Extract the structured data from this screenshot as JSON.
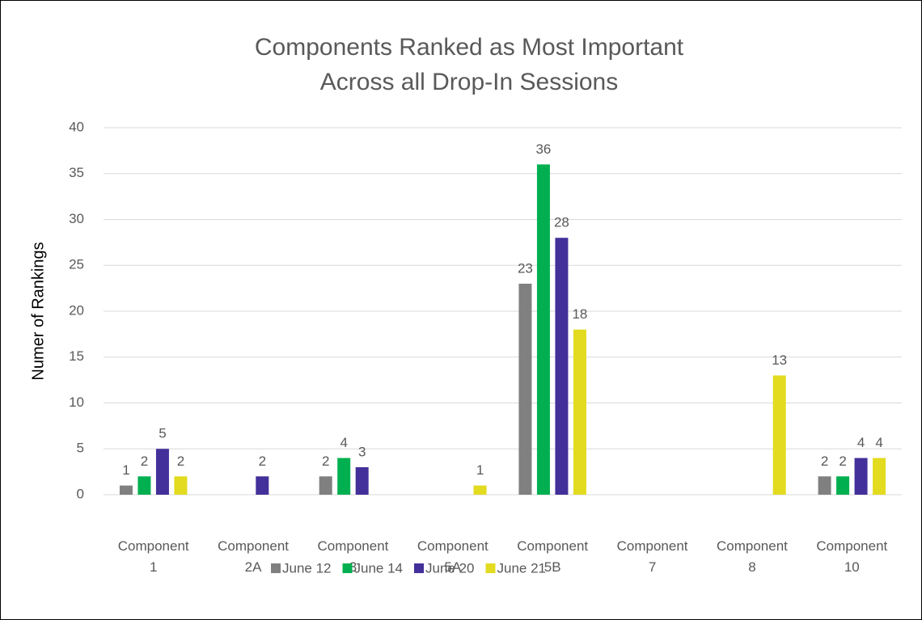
{
  "chart_data": {
    "type": "bar",
    "title": [
      "Components Ranked as Most Important",
      "Across all Drop-In Sessions"
    ],
    "y_label": "Numer of Rankings",
    "categories": [
      "Component 1",
      "Component 2A",
      "Component 3",
      "Component 5A",
      "Component 5B",
      "Component 7",
      "Component 8",
      "Component 10"
    ],
    "series": [
      {
        "name": "June 12",
        "color": "#808080",
        "values": [
          1,
          null,
          2,
          null,
          23,
          null,
          null,
          2
        ]
      },
      {
        "name": "June 14",
        "color": "#00b050",
        "values": [
          2,
          null,
          4,
          null,
          36,
          null,
          null,
          2
        ]
      },
      {
        "name": "June 20",
        "color": "#44309a",
        "values": [
          5,
          2,
          3,
          null,
          28,
          null,
          null,
          4
        ]
      },
      {
        "name": "June 21",
        "color": "#e2db1f",
        "values": [
          2,
          null,
          null,
          1,
          18,
          null,
          13,
          4
        ]
      }
    ],
    "ylim": [
      0,
      40
    ],
    "yticks": [
      0,
      5,
      10,
      15,
      20,
      25,
      30,
      35,
      40
    ],
    "grid": true,
    "legend": "bottom"
  }
}
